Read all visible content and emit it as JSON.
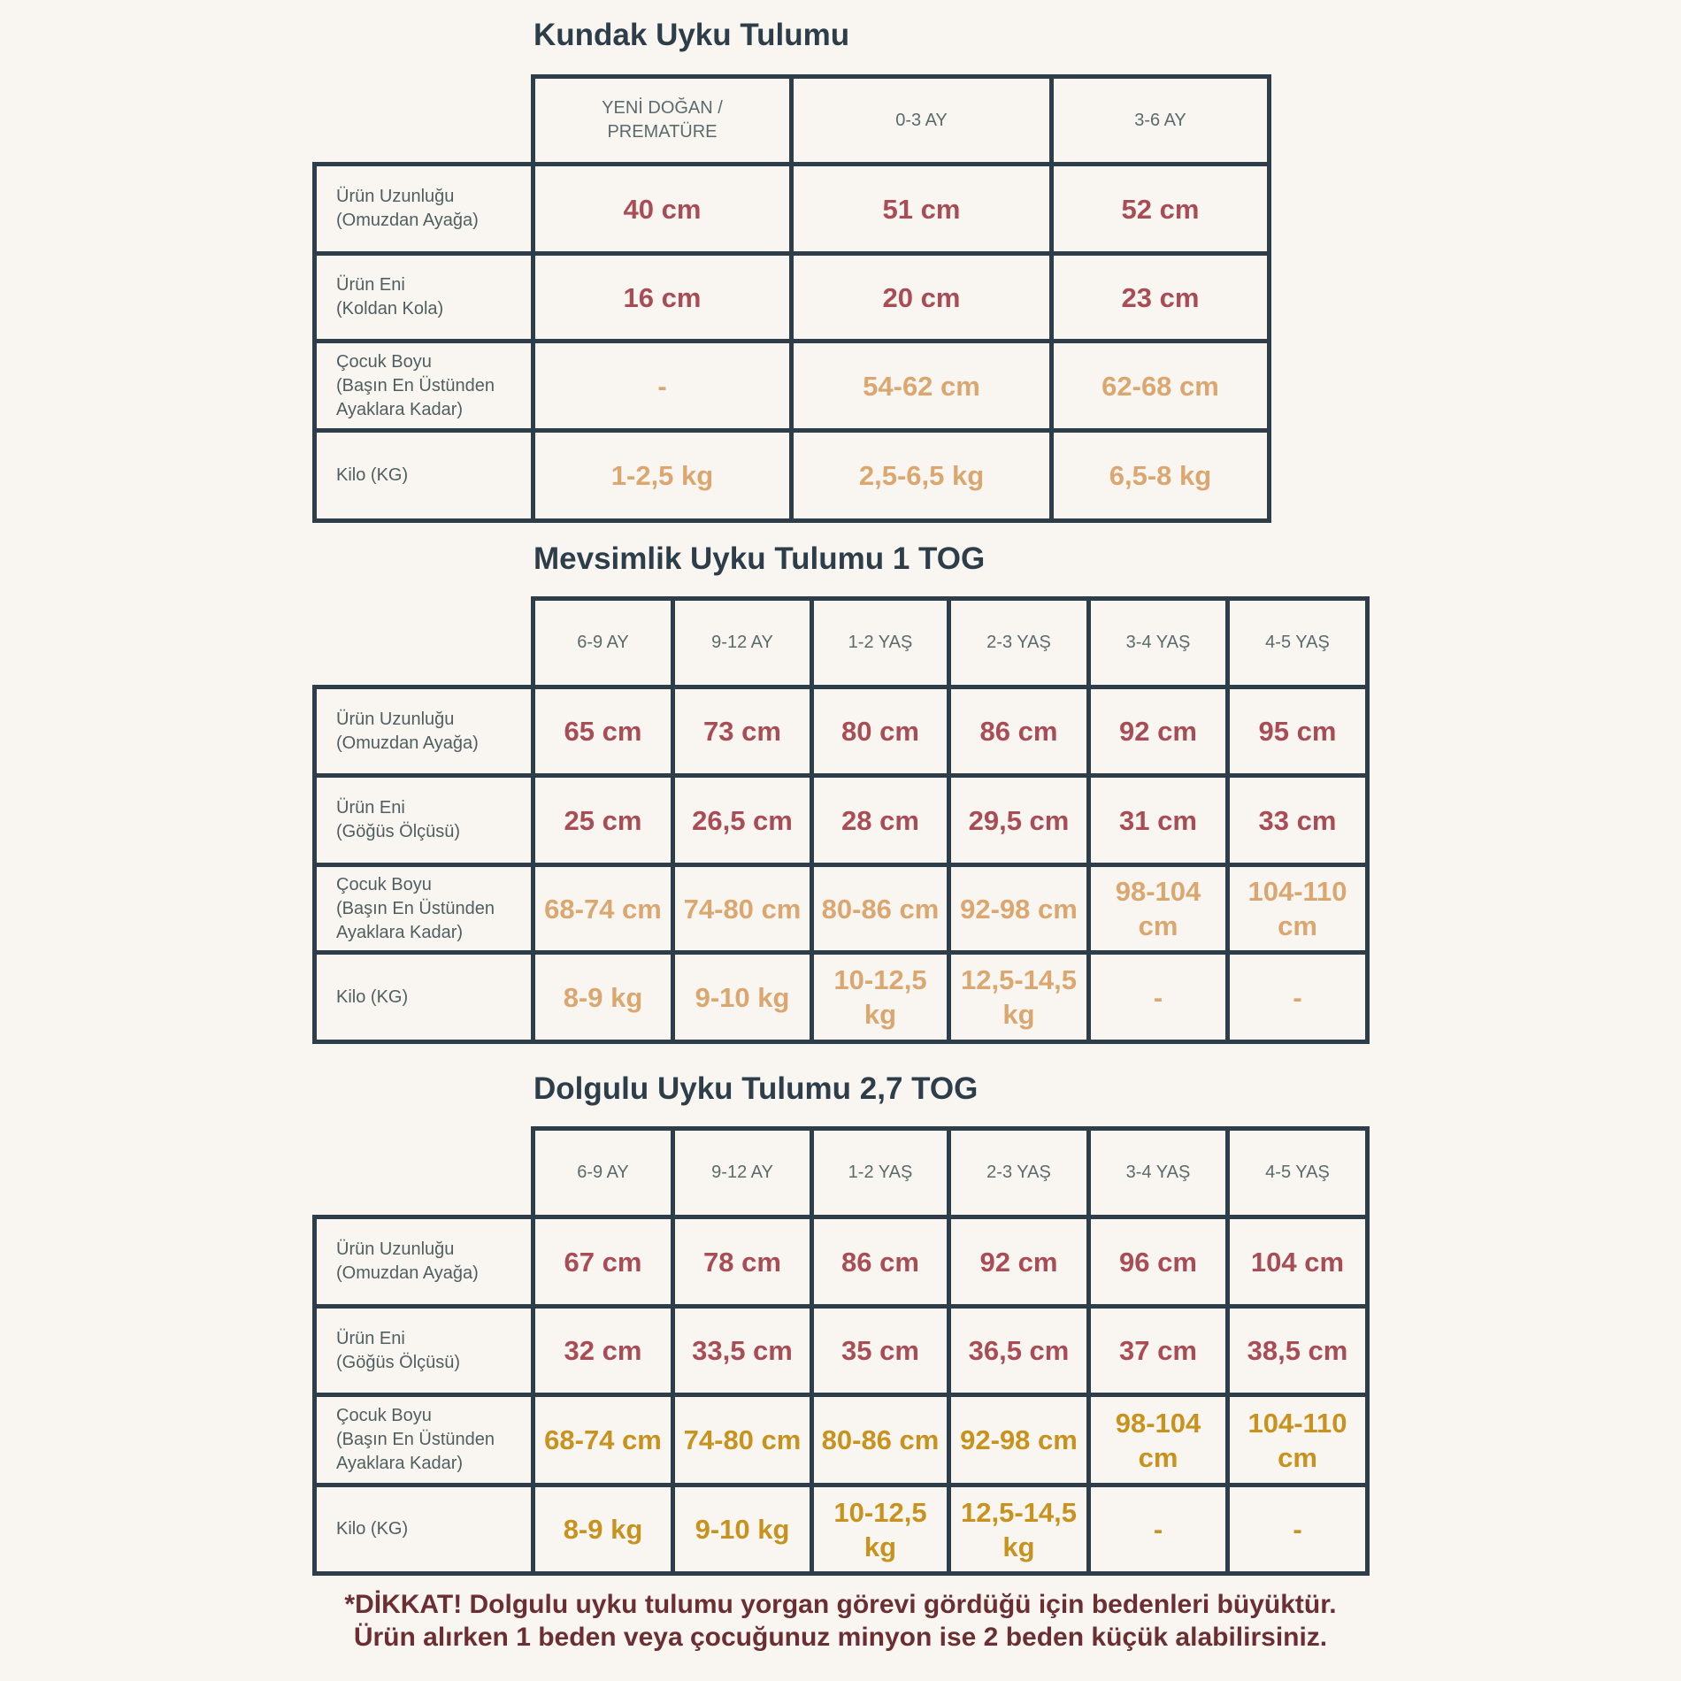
{
  "colors": {
    "border": "#2d3e4a",
    "size_value": "#a84c55",
    "child_value": "#dba770",
    "child_value_padded": "#c8921e",
    "note": "#6b2f33",
    "background": "#f9f6f1"
  },
  "tables": [
    {
      "title": "Kundak Uyku Tulumu",
      "columns": [
        "YENİ DOĞAN /\nPREMATÜRE",
        "0-3 AY",
        "3-6 AY"
      ],
      "rows": [
        {
          "label": "Ürün Uzunluğu\n(Omuzdan Ayağa)",
          "values": [
            "40 cm",
            "51 cm",
            "52 cm"
          ],
          "tone": "red"
        },
        {
          "label": "Ürün Eni\n(Koldan Kola)",
          "values": [
            "16 cm",
            "20 cm",
            "23 cm"
          ],
          "tone": "red"
        },
        {
          "label": "Çocuk Boyu\n(Başın En Üstünden\nAyaklara Kadar)",
          "values": [
            "-",
            "54-62 cm",
            "62-68 cm"
          ],
          "tone": "tan"
        },
        {
          "label": "Kilo (KG)",
          "values": [
            "1-2,5 kg",
            "2,5-6,5 kg",
            "6,5-8 kg"
          ],
          "tone": "tan"
        }
      ]
    },
    {
      "title": "Mevsimlik Uyku Tulumu 1 TOG",
      "columns": [
        "6-9 AY",
        "9-12 AY",
        "1-2 YAŞ",
        "2-3 YAŞ",
        "3-4 YAŞ",
        "4-5 YAŞ"
      ],
      "rows": [
        {
          "label": "Ürün Uzunluğu\n(Omuzdan Ayağa)",
          "values": [
            "65 cm",
            "73 cm",
            "80 cm",
            "86 cm",
            "92 cm",
            "95 cm"
          ],
          "tone": "red"
        },
        {
          "label": "Ürün Eni\n(Göğüs Ölçüsü)",
          "values": [
            "25 cm",
            "26,5 cm",
            "28 cm",
            "29,5 cm",
            "31 cm",
            "33 cm"
          ],
          "tone": "red"
        },
        {
          "label": "Çocuk Boyu\n(Başın En Üstünden\nAyaklara Kadar)",
          "values": [
            "68-74 cm",
            "74-80 cm",
            "80-86 cm",
            "92-98 cm",
            "98-104\ncm",
            "104-110\ncm"
          ],
          "tone": "tan"
        },
        {
          "label": "Kilo (KG)",
          "values": [
            "8-9 kg",
            "9-10 kg",
            "10-12,5\nkg",
            "12,5-14,5\nkg",
            "-",
            "-"
          ],
          "tone": "tan"
        }
      ]
    },
    {
      "title": "Dolgulu Uyku Tulumu 2,7 TOG",
      "columns": [
        "6-9 AY",
        "9-12 AY",
        "1-2 YAŞ",
        "2-3 YAŞ",
        "3-4 YAŞ",
        "4-5 YAŞ"
      ],
      "rows": [
        {
          "label": "Ürün Uzunluğu\n(Omuzdan Ayağa)",
          "values": [
            "67 cm",
            "78 cm",
            "86 cm",
            "92 cm",
            "96 cm",
            "104 cm"
          ],
          "tone": "red"
        },
        {
          "label": "Ürün Eni\n(Göğüs Ölçüsü)",
          "values": [
            "32 cm",
            "33,5 cm",
            "35 cm",
            "36,5 cm",
            "37 cm",
            "38,5 cm"
          ],
          "tone": "red"
        },
        {
          "label": "Çocuk Boyu\n(Başın En Üstünden\nAyaklara Kadar)",
          "values": [
            "68-74 cm",
            "74-80 cm",
            "80-86 cm",
            "92-98 cm",
            "98-104\ncm",
            "104-110\ncm"
          ],
          "tone": "gold"
        },
        {
          "label": "Kilo (KG)",
          "values": [
            "8-9 kg",
            "9-10 kg",
            "10-12,5\nkg",
            "12,5-14,5\nkg",
            "-",
            "-"
          ],
          "tone": "gold"
        }
      ]
    }
  ],
  "note": {
    "line1": "*DİKKAT! Dolgulu uyku tulumu yorgan görevi gördüğü için bedenleri büyüktür.",
    "line2": "Ürün alırken 1 beden veya çocuğunuz minyon ise 2 beden küçük alabilirsiniz."
  }
}
